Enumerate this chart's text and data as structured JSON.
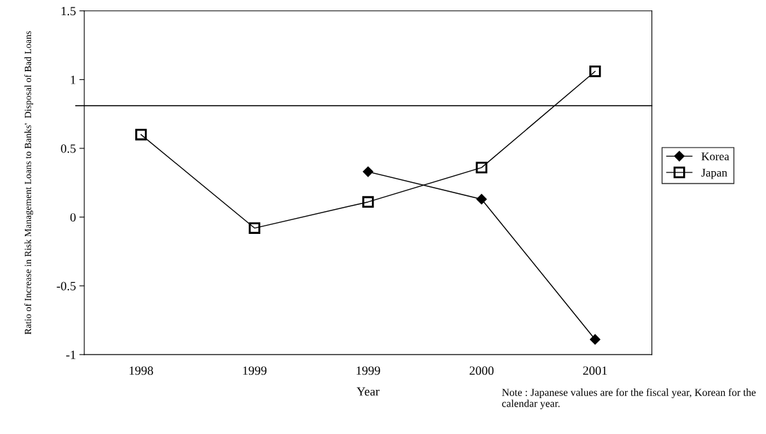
{
  "chart_data": {
    "type": "line",
    "xlabel": "Year",
    "ylabel": "Ratio of Increase in Risk Management Loans to Banks'  Disposal of Bad Loans",
    "categories": [
      "1998",
      "1999",
      "1999",
      "2000",
      "2001"
    ],
    "series": [
      {
        "name": "Korea",
        "color": "#000000",
        "marker": "diamond",
        "values": [
          null,
          null,
          0.33,
          0.13,
          -0.89
        ]
      },
      {
        "name": "Japan",
        "color": "#000000",
        "marker": "square",
        "values": [
          0.6,
          -0.08,
          0.11,
          0.36,
          1.06
        ]
      }
    ],
    "ylim": [
      -1,
      1.5
    ],
    "yticks": [
      -1,
      -0.5,
      0,
      0.5,
      1,
      1.5
    ],
    "ref_lines": [
      {
        "axis": "y",
        "value": 0.81,
        "color": "#000000"
      }
    ],
    "grid": false,
    "legend": "right",
    "line_style": "solid",
    "annotations": [
      "Note : Japanese values are for the fiscal year, Korean for the calendar year."
    ]
  }
}
